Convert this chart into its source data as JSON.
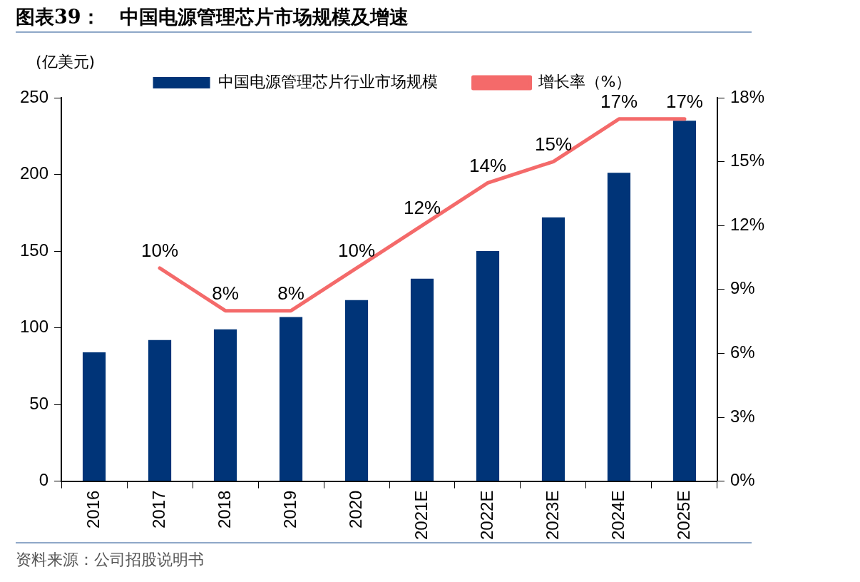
{
  "chart_data": {
    "type": "bar",
    "title": "图表39：　中国电源管理芯片市场规模及增速",
    "ylabel": "(亿美元)",
    "categories": [
      "2016",
      "2017",
      "2018",
      "2019",
      "2020",
      "2021E",
      "2022E",
      "2023E",
      "2024E",
      "2025E"
    ],
    "series": [
      {
        "name": "中国电源管理芯片行业市场规模",
        "color": "#003478",
        "values": [
          84,
          92,
          99,
          107,
          118,
          132,
          150,
          172,
          201,
          235
        ]
      },
      {
        "name": "增长率（%）",
        "type": "line",
        "axis": "y2",
        "color": "#f46a6a",
        "values": [
          null,
          10,
          8,
          8,
          10,
          12,
          14,
          15,
          17,
          17
        ],
        "value_labels": [
          null,
          "10%",
          "8%",
          "8%",
          "10%",
          "12%",
          "14%",
          "15%",
          "17%",
          "17%"
        ]
      }
    ],
    "ylim": [
      0,
      250
    ],
    "yticks": [
      0,
      50,
      100,
      150,
      200,
      250
    ],
    "y2lim": [
      0,
      18
    ],
    "y2ticks": [
      {
        "value": 0,
        "label": "0%"
      },
      {
        "value": 3,
        "label": "3%"
      },
      {
        "value": 6,
        "label": "6%"
      },
      {
        "value": 9,
        "label": "9%"
      },
      {
        "value": 12,
        "label": "12%"
      },
      {
        "value": 15,
        "label": "15%"
      },
      {
        "value": 18,
        "label": "18%"
      }
    ],
    "grid": false,
    "legend": "top",
    "marker": "none",
    "annotations": [
      "资料来源：公司招股说明书"
    ]
  }
}
